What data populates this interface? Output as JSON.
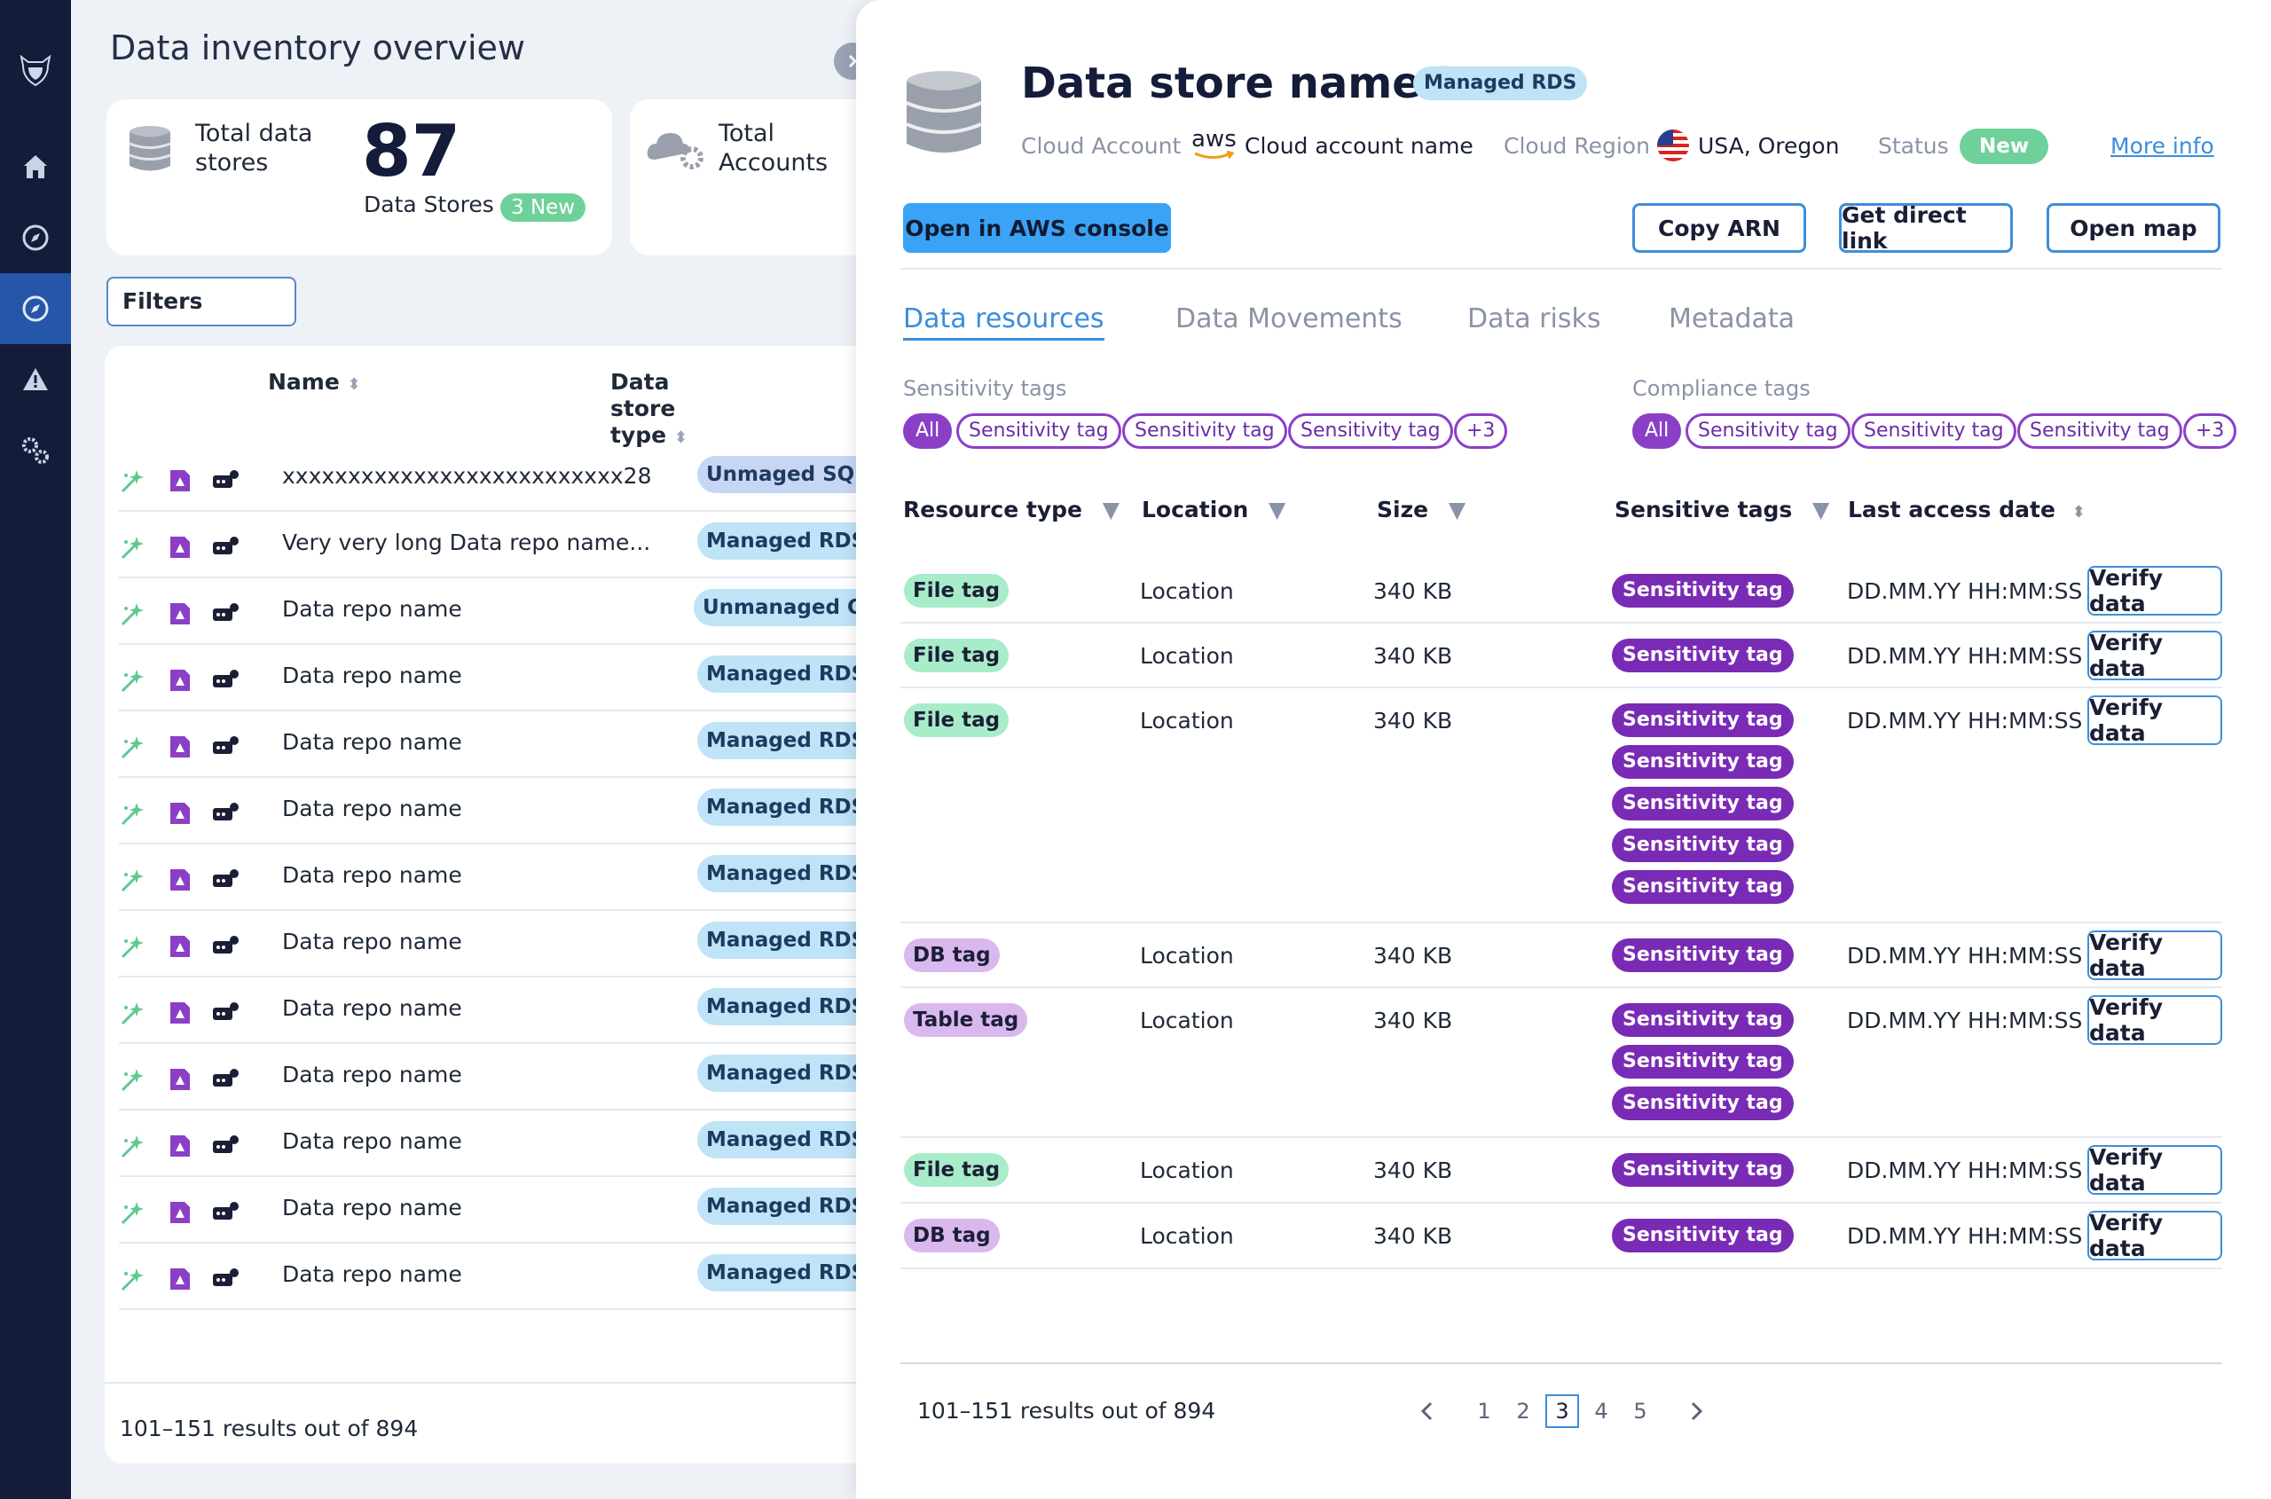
{
  "overview": {
    "title": "Data inventory overview",
    "total_data_stores": {
      "label": "Total data stores",
      "value": "87",
      "unit": "Data Stores",
      "new_badge": "3 New"
    },
    "total_accounts": {
      "label": "Total Accounts"
    },
    "filters_label": "Filters",
    "table": {
      "columns": [
        "Name",
        "Data store type"
      ],
      "rows": [
        {
          "name": "xxxxxxxxxxxxxxxxxxxxxxxxxx28",
          "type": "Unmaged SQL"
        },
        {
          "name": "Very very long Data repo name...",
          "type": "Managed RDS"
        },
        {
          "name": "Data repo name",
          "type": "Unmanaged CassandraDB"
        },
        {
          "name": "Data repo name",
          "type": "Managed RDS"
        },
        {
          "name": "Data repo name",
          "type": "Managed RDS"
        },
        {
          "name": "Data repo name",
          "type": "Managed RDS"
        },
        {
          "name": "Data repo name",
          "type": "Managed RDS"
        },
        {
          "name": "Data repo name",
          "type": "Managed RDS"
        },
        {
          "name": "Data repo name",
          "type": "Managed RDS"
        },
        {
          "name": "Data repo name",
          "type": "Managed RDS"
        },
        {
          "name": "Data repo name",
          "type": "Managed RDS"
        },
        {
          "name": "Data repo name",
          "type": "Managed RDS"
        },
        {
          "name": "Data repo name",
          "type": "Managed RDS"
        }
      ],
      "results": "101–151 results out of 894"
    }
  },
  "detail": {
    "title": "Data store name ID",
    "badge": "Managed RDS",
    "cloud_account_label": "Cloud Account",
    "cloud_provider": "aws",
    "cloud_account_name": "Cloud account name",
    "cloud_region_label": "Cloud Region",
    "cloud_region": "USA, Oregon",
    "status_label": "Status",
    "status": "New",
    "more_info": "More info",
    "buttons": {
      "aws_console": "Open in AWS console",
      "copy_arn": "Copy ARN",
      "direct_link": "Get direct link",
      "open_map": "Open map"
    },
    "tabs": [
      "Data resources",
      "Data Movements",
      "Data risks",
      "Metadata"
    ],
    "sensitivity_tags": {
      "label": "Sensitivity tags",
      "all": "All",
      "tags": [
        "Sensitivity tag",
        "Sensitivity tag",
        "Sensitivity tag"
      ],
      "more": "+3"
    },
    "compliance_tags": {
      "label": "Compliance tags",
      "all": "All",
      "tags": [
        "Sensitivity tag",
        "Sensitivity tag",
        "Sensitivity tag"
      ],
      "more": "+3"
    },
    "resources": {
      "columns": [
        "Resource type",
        "Location",
        "Size",
        "Sensitive tags",
        "Last access date"
      ],
      "rows": [
        {
          "tag": "File tag",
          "tag_kind": "file",
          "location": "Location",
          "size": "340 KB",
          "sensitive": [
            "Sensitivity tag"
          ],
          "date": "DD.MM.YY HH:MM:SS",
          "action": "Verify data"
        },
        {
          "tag": "File tag",
          "tag_kind": "file",
          "location": "Location",
          "size": "340 KB",
          "sensitive": [
            "Sensitivity tag"
          ],
          "date": "DD.MM.YY HH:MM:SS",
          "action": "Verify data"
        },
        {
          "tag": "File tag",
          "tag_kind": "file",
          "location": "Location",
          "size": "340 KB",
          "sensitive": [
            "Sensitivity tag",
            "Sensitivity tag",
            "Sensitivity tag",
            "Sensitivity tag",
            "Sensitivity tag"
          ],
          "date": "DD.MM.YY HH:MM:SS",
          "action": "Verify data"
        },
        {
          "tag": "DB tag",
          "tag_kind": "db",
          "location": "Location",
          "size": "340 KB",
          "sensitive": [
            "Sensitivity tag"
          ],
          "date": "DD.MM.YY HH:MM:SS",
          "action": "Verify data"
        },
        {
          "tag": "Table tag",
          "tag_kind": "table",
          "location": "Location",
          "size": "340 KB",
          "sensitive": [
            "Sensitivity tag",
            "Sensitivity tag",
            "Sensitivity tag"
          ],
          "date": "DD.MM.YY HH:MM:SS",
          "action": "Verify data"
        },
        {
          "tag": "File tag",
          "tag_kind": "file",
          "location": "Location",
          "size": "340 KB",
          "sensitive": [
            "Sensitivity tag"
          ],
          "date": "DD.MM.YY HH:MM:SS",
          "action": "Verify data"
        },
        {
          "tag": "DB tag",
          "tag_kind": "db",
          "location": "Location",
          "size": "340 KB",
          "sensitive": [
            "Sensitivity tag"
          ],
          "date": "DD.MM.YY HH:MM:SS",
          "action": "Verify data"
        }
      ],
      "results": "101–151 results out of 894",
      "pages": [
        "1",
        "2",
        "3",
        "4",
        "5"
      ],
      "current_page": "3"
    }
  },
  "colors": {
    "sidebar": "#141c3a",
    "sidebar_active": "#2556a8",
    "accent": "#3b8ddb",
    "new_green": "#6fd19a",
    "sensitivity_purple": "#7a2bb5",
    "badge_blue": "#bfe3f7"
  }
}
